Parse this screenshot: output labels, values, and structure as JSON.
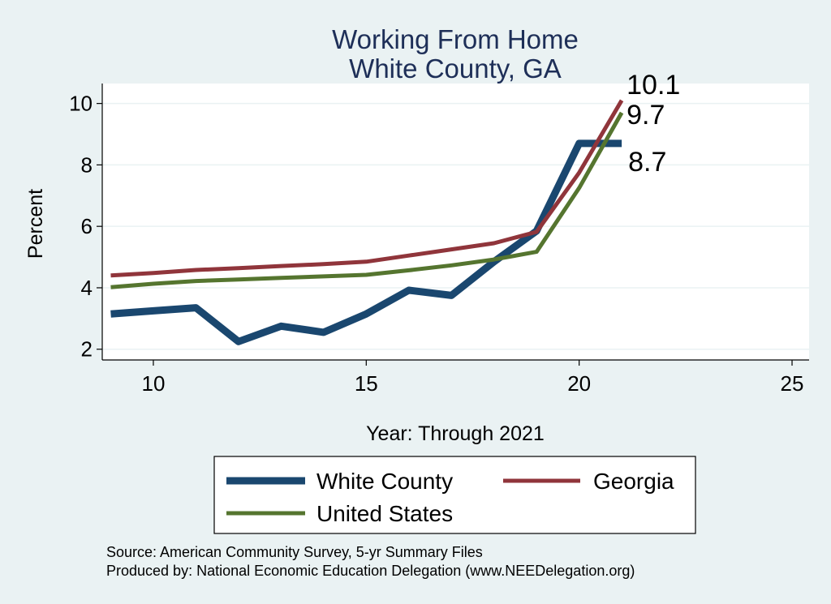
{
  "chart_data": {
    "type": "line",
    "title": [
      "Working From Home",
      "White County, GA"
    ],
    "xlabel": "Year: Through 2021",
    "ylabel": "Percent",
    "xlim": [
      8.8,
      25.4
    ],
    "ylim": [
      1.65,
      10.65
    ],
    "xticks": [
      10,
      15,
      20,
      25
    ],
    "yticks": [
      2,
      4,
      6,
      8,
      10
    ],
    "grid": "horizontal",
    "legend_position": "bottom",
    "series": [
      {
        "name": "White County",
        "color": "#1a476f",
        "x": [
          9,
          10,
          11,
          12,
          13,
          14,
          15,
          16,
          17,
          18,
          19,
          20,
          21
        ],
        "y": [
          3.15,
          3.25,
          3.35,
          2.25,
          2.75,
          2.55,
          3.15,
          3.92,
          3.75,
          4.85,
          5.85,
          8.7,
          8.7
        ],
        "end_label": "8.7"
      },
      {
        "name": "Georgia",
        "color": "#90353b",
        "x": [
          9,
          10,
          11,
          12,
          13,
          14,
          15,
          16,
          17,
          18,
          19,
          20,
          21
        ],
        "y": [
          4.4,
          4.48,
          4.58,
          4.64,
          4.71,
          4.77,
          4.85,
          5.05,
          5.25,
          5.45,
          5.82,
          7.75,
          10.1
        ],
        "end_label": "10.1"
      },
      {
        "name": "United States",
        "color": "#55752f",
        "x": [
          9,
          10,
          11,
          12,
          13,
          14,
          15,
          16,
          17,
          18,
          19,
          20,
          21
        ],
        "y": [
          4.02,
          4.13,
          4.22,
          4.27,
          4.32,
          4.37,
          4.42,
          4.57,
          4.73,
          4.92,
          5.17,
          7.25,
          9.7
        ],
        "end_label": "9.7"
      }
    ]
  },
  "notes": [
    "Source: American Community Survey, 5-yr Summary Files",
    "Produced by: National Economic Education Delegation (www.NEEDelegation.org)"
  ]
}
